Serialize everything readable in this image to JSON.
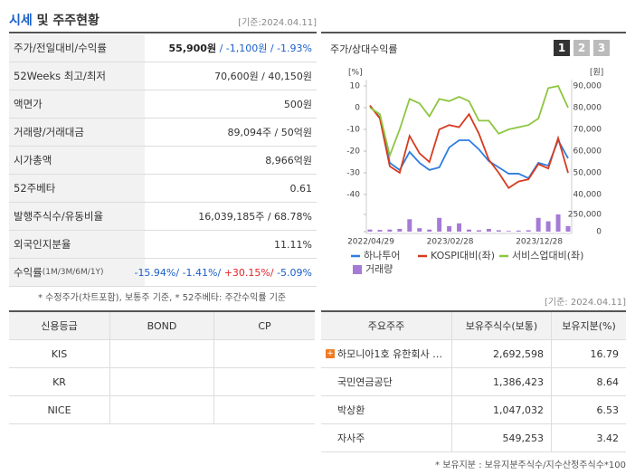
{
  "stock_panel": {
    "title_highlight": "시세",
    "title_rest": "및 주주현황",
    "date": "[기준:2024.04.11]",
    "rows": [
      {
        "label": [
          {
            "text": "주가/전일대비/수익률",
            "tone": "plain"
          }
        ],
        "value": [
          {
            "text": "55,900원",
            "tone": "bold"
          },
          {
            "text": " / -1,100원 / -1.93%",
            "tone": "down"
          }
        ]
      },
      {
        "label": [
          {
            "text": "52Weeks 최고/최저",
            "tone": "plain"
          }
        ],
        "value": [
          {
            "text": "70,600원 / 40,150원",
            "tone": "plain"
          }
        ]
      },
      {
        "label": [
          {
            "text": "액면가",
            "tone": "plain"
          }
        ],
        "value": [
          {
            "text": "500원",
            "tone": "plain"
          }
        ]
      },
      {
        "label": [
          {
            "text": "거래량/거래대금",
            "tone": "plain"
          }
        ],
        "value": [
          {
            "text": "89,094주 / 50억원",
            "tone": "plain"
          }
        ]
      },
      {
        "label": [
          {
            "text": "시가총액",
            "tone": "plain"
          }
        ],
        "value": [
          {
            "text": "8,966억원",
            "tone": "plain"
          }
        ]
      },
      {
        "label": [
          {
            "text": "52주베타",
            "tone": "plain"
          }
        ],
        "value": [
          {
            "text": "0.61",
            "tone": "plain"
          }
        ]
      },
      {
        "label": [
          {
            "text": "발행주식수/유동비율",
            "tone": "plain"
          }
        ],
        "value": [
          {
            "text": "16,039,185주 / 68.78%",
            "tone": "plain"
          }
        ]
      },
      {
        "label": [
          {
            "text": "외국인지분율",
            "tone": "plain"
          }
        ],
        "value": [
          {
            "text": "11.11%",
            "tone": "plain"
          }
        ]
      },
      {
        "label": [
          {
            "text": "수익률",
            "tone": "plain"
          },
          {
            "text": " (1M/3M/6M/1Y)",
            "tone": "small"
          }
        ],
        "value": [
          {
            "text": "-15.94%/ -1.41%/ ",
            "tone": "down"
          },
          {
            "text": "+30.15%/ ",
            "tone": "up"
          },
          {
            "text": "-5.09%",
            "tone": "down"
          }
        ]
      }
    ],
    "note": "* 수정주가(차트포함), 보통주 기준, * 52주베타: 주간수익률 기준"
  },
  "chart_panel": {
    "title": "주가/상대수익률",
    "buttons": [
      "1",
      "2",
      "3"
    ],
    "left_unit": "[%]",
    "right_unit": "[원]"
  },
  "chart_data": {
    "type": "line",
    "categories": [
      "2022/04/29",
      null,
      null,
      null,
      null,
      null,
      null,
      null,
      "2023/02/28",
      null,
      null,
      null,
      null,
      null,
      null,
      null,
      null,
      "2023/12/28",
      null,
      null,
      null
    ],
    "ylim": [
      -40,
      10
    ],
    "yticks": [
      10,
      0,
      -10,
      -20,
      -30,
      -40
    ],
    "y2lim": [
      40000,
      90000
    ],
    "y2ticks": [
      {
        "value": 90000,
        "label": "90,000"
      },
      {
        "value": 80000,
        "label": "80,000"
      },
      {
        "value": 70000,
        "label": "70,000"
      },
      {
        "value": 60000,
        "label": "60,000"
      },
      {
        "value": 50000,
        "label": "50,000"
      },
      {
        "value": 40000,
        "label": "40,000"
      }
    ],
    "y3lim": [
      0,
      250000
    ],
    "y3ticks": [
      {
        "value": 250000,
        "label": "250,000"
      },
      0
    ],
    "series": [
      {
        "name": "하나투어",
        "color": "#2e7de0",
        "axis": "y2",
        "values": [
          80800,
          75400,
          54600,
          51300,
          59600,
          54600,
          51300,
          52500,
          61700,
          65000,
          65000,
          60800,
          55400,
          52500,
          49600,
          49600,
          47500,
          54600,
          53300,
          65000,
          56700
        ]
      },
      {
        "name": "KOSPI대비(좌)",
        "color": "#d63b1f",
        "values": [
          1,
          -5,
          -27,
          -30,
          -13,
          -21,
          -25,
          -10,
          -8,
          -9,
          -3,
          -12,
          -24,
          -30,
          -37,
          -34,
          -33,
          -26,
          -28,
          -14,
          -30
        ]
      },
      {
        "name": "서비스업대비(좌)",
        "color": "#8dc63f",
        "values": [
          0,
          -3,
          -22,
          -10,
          4,
          2,
          -4,
          4,
          3,
          5,
          3,
          -6,
          -6,
          -12,
          -10,
          -9,
          -8,
          -5,
          9,
          10,
          0
        ]
      },
      {
        "name": "거래량",
        "color": "#a57bd6",
        "type": "bar",
        "axis": "y3",
        "values": [
          30000,
          25000,
          30000,
          40000,
          180000,
          50000,
          30000,
          200000,
          80000,
          120000,
          30000,
          20000,
          40000,
          20000,
          10000,
          15000,
          20000,
          200000,
          150000,
          250000,
          80000
        ]
      }
    ]
  },
  "bottom_date": "[기준: 2024.04.11]",
  "credit_table": {
    "header": [
      "신용등급",
      "BOND",
      "CP"
    ],
    "rows": [
      [
        "KIS",
        "",
        ""
      ],
      [
        "KR",
        "",
        ""
      ],
      [
        "NICE",
        "",
        ""
      ]
    ]
  },
  "holder_table": {
    "header": [
      "주요주주",
      "보유주식수(보통)",
      "보유지분(%)"
    ],
    "rows": [
      [
        "하모니아1호 유한회사 …",
        "2,692,598",
        "16.79"
      ],
      [
        "국민연금공단",
        "1,386,423",
        "8.64"
      ],
      [
        "박상환",
        "1,047,032",
        "6.53"
      ],
      [
        "자사주",
        "549,253",
        "3.42"
      ]
    ]
  },
  "holder_note": "* 보유지분 : 보유지분주식수/지수산정주식수*100"
}
